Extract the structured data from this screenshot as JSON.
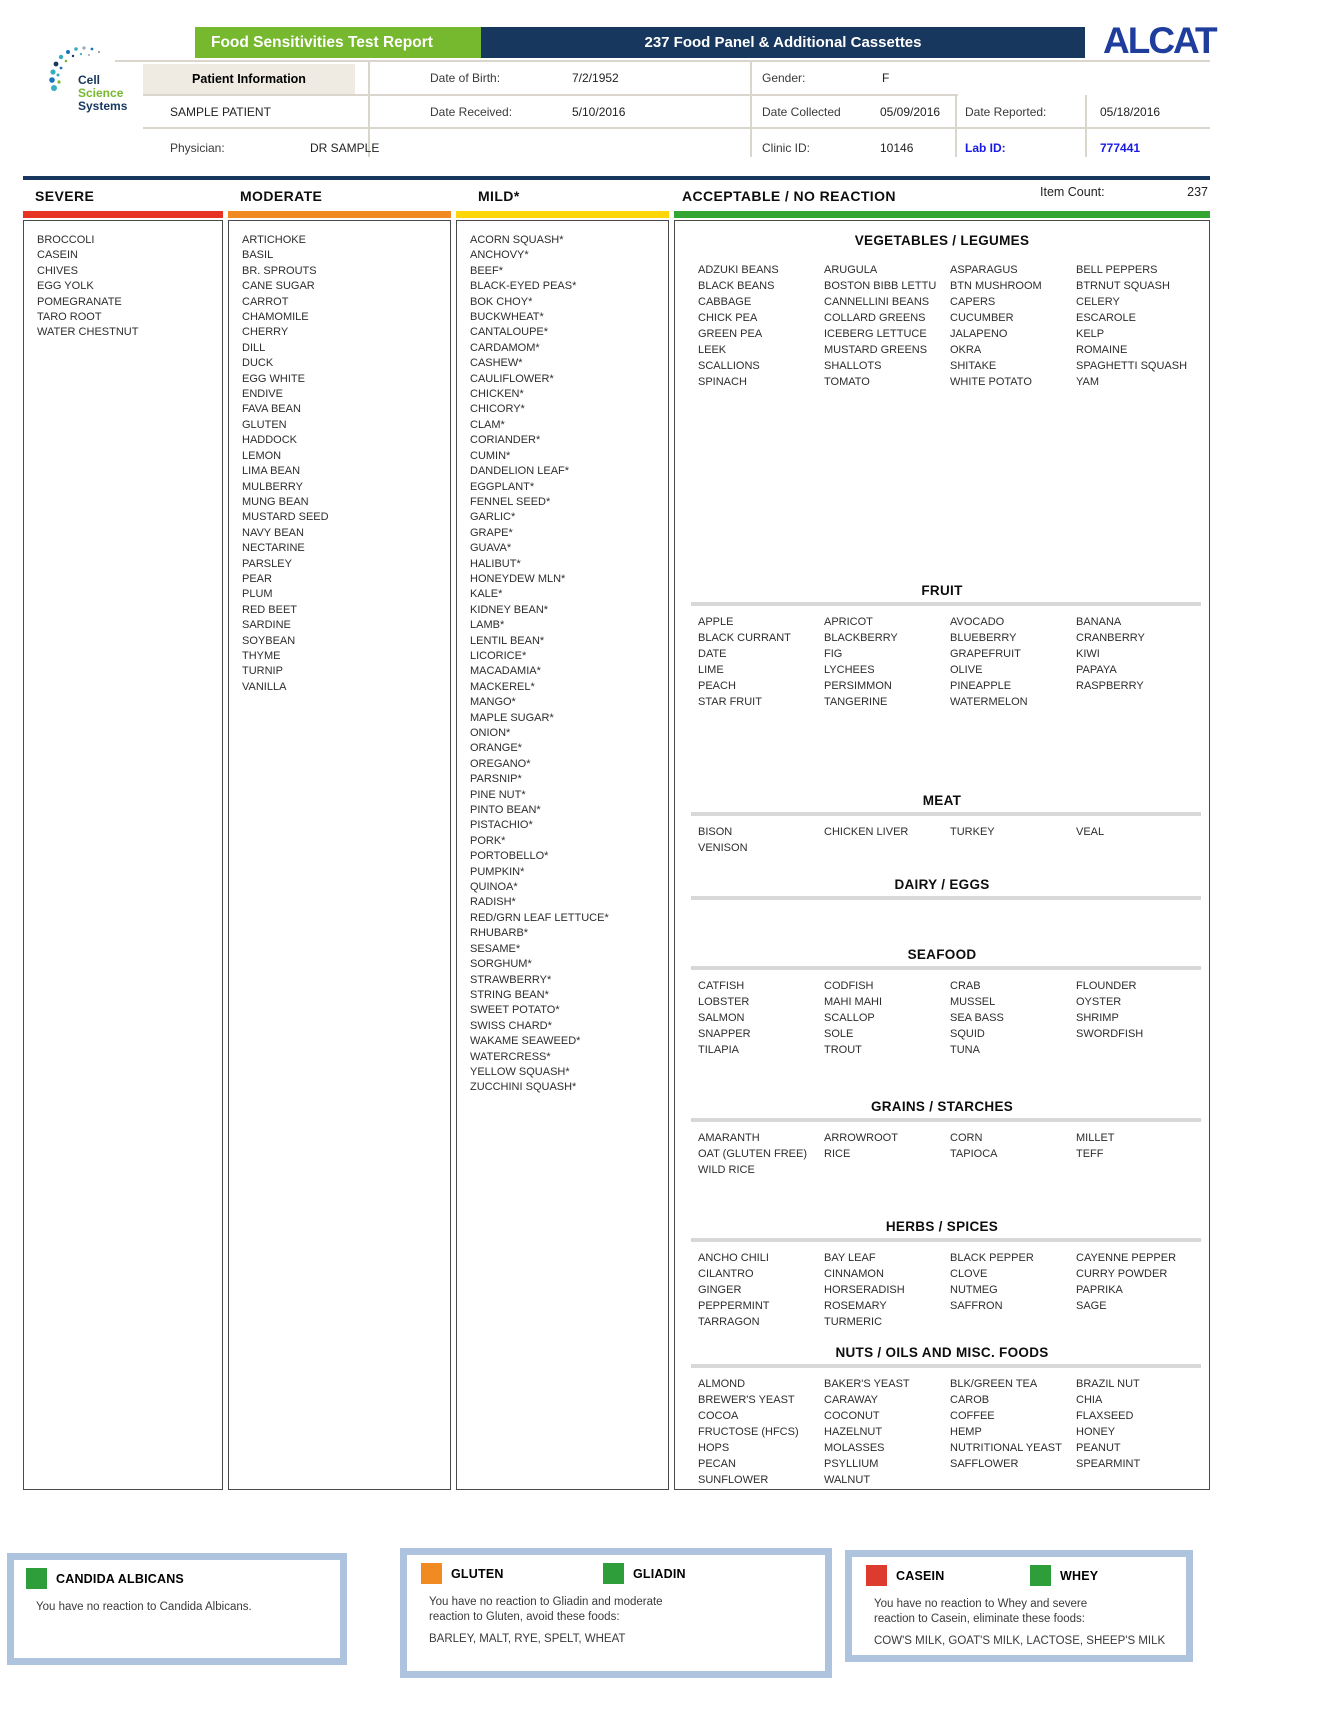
{
  "header": {
    "report_title": "Food Sensitivities Test Report",
    "panel_title": "237 Food Panel & Additional Cassettes",
    "brand": "ALCAT",
    "logo": {
      "line1": "Cell",
      "line2": "Science",
      "line3": "Systems"
    }
  },
  "patient": {
    "section_label": "Patient Information",
    "name": "SAMPLE PATIENT",
    "physician_label": "Physician:",
    "physician": "DR SAMPLE",
    "dob_label": "Date of Birth:",
    "dob": "7/2/1952",
    "gender_label": "Gender:",
    "gender": "F",
    "date_received_label": "Date Received:",
    "date_received": "5/10/2016",
    "date_collected_label": "Date Collected",
    "date_collected": "05/09/2016",
    "date_reported_label": "Date Reported:",
    "date_reported": "05/18/2016",
    "clinic_id_label": "Clinic ID:",
    "clinic_id": "10146",
    "lab_id_label": "Lab ID:",
    "lab_id": "777441"
  },
  "item_count_label": "Item Count:",
  "item_count": "237",
  "colors": {
    "severe": "#E63323",
    "moderate": "#F18A21",
    "mild": "#FFD60A",
    "acceptable": "#33A532",
    "banner_green": "#76B82E",
    "banner_navy": "#17375E",
    "alcat_blue": "#1F3D9C",
    "lab_id_blue": "#1A1AE6",
    "cassette_border": "#AEC3DE"
  },
  "columns": {
    "severe": {
      "label": "SEVERE",
      "items": [
        "BROCCOLI",
        "CASEIN",
        "CHIVES",
        "EGG YOLK",
        "POMEGRANATE",
        "TARO ROOT",
        "WATER CHESTNUT"
      ]
    },
    "moderate": {
      "label": "MODERATE",
      "items": [
        "ARTICHOKE",
        "BASIL",
        "BR. SPROUTS",
        "CANE SUGAR",
        "CARROT",
        "CHAMOMILE",
        "CHERRY",
        "DILL",
        "DUCK",
        "EGG WHITE",
        "ENDIVE",
        "FAVA BEAN",
        "GLUTEN",
        "HADDOCK",
        "LEMON",
        "LIMA BEAN",
        "MULBERRY",
        "MUNG BEAN",
        "MUSTARD SEED",
        "NAVY BEAN",
        "NECTARINE",
        "PARSLEY",
        "PEAR",
        "PLUM",
        "RED BEET",
        "SARDINE",
        "SOYBEAN",
        "THYME",
        "TURNIP",
        "VANILLA"
      ]
    },
    "mild": {
      "label": "MILD*",
      "items": [
        "ACORN SQUASH*",
        "ANCHOVY*",
        "BEEF*",
        "BLACK-EYED PEAS*",
        "BOK CHOY*",
        "BUCKWHEAT*",
        "CANTALOUPE*",
        "CARDAMOM*",
        "CASHEW*",
        "CAULIFLOWER*",
        "CHICKEN*",
        "CHICORY*",
        "CLAM*",
        "CORIANDER*",
        "CUMIN*",
        "DANDELION LEAF*",
        "EGGPLANT*",
        "FENNEL SEED*",
        "GARLIC*",
        "GRAPE*",
        "GUAVA*",
        "HALIBUT*",
        "HONEYDEW MLN*",
        "KALE*",
        "KIDNEY BEAN*",
        "LAMB*",
        "LENTIL BEAN*",
        "LICORICE*",
        "MACADAMIA*",
        "MACKEREL*",
        "MANGO*",
        "MAPLE SUGAR*",
        "ONION*",
        "ORANGE*",
        "OREGANO*",
        "PARSNIP*",
        "PINE NUT*",
        "PINTO BEAN*",
        "PISTACHIO*",
        "PORK*",
        "PORTOBELLO*",
        "PUMPKIN*",
        "QUINOA*",
        "RADISH*",
        "RED/GRN LEAF LETTUCE*",
        "RHUBARB*",
        "SESAME*",
        "SORGHUM*",
        "STRAWBERRY*",
        "STRING BEAN*",
        "SWEET POTATO*",
        "SWISS CHARD*",
        "WAKAME SEAWEED*",
        "WATERCRESS*",
        "YELLOW SQUASH*",
        "ZUCCHINI SQUASH*"
      ]
    },
    "acceptable": {
      "label": "ACCEPTABLE / NO REACTION",
      "categories": [
        {
          "name": "VEGETABLES / LEGUMES",
          "columns": [
            [
              "ADZUKI BEANS",
              "BLACK BEANS",
              "CABBAGE",
              "CHICK PEA",
              "GREEN PEA",
              "LEEK",
              "SCALLIONS",
              "SPINACH"
            ],
            [
              "ARUGULA",
              "BOSTON BIBB LETTU",
              "CANNELLINI BEANS",
              "COLLARD GREENS",
              "ICEBERG LETTUCE",
              "MUSTARD GREENS",
              "SHALLOTS",
              "TOMATO"
            ],
            [
              "ASPARAGUS",
              "BTN MUSHROOM",
              "CAPERS",
              "CUCUMBER",
              "JALAPENO",
              "OKRA",
              "SHITAKE",
              "WHITE POTATO"
            ],
            [
              "BELL PEPPERS",
              "BTRNUT SQUASH",
              "CELERY",
              "ESCAROLE",
              "KELP",
              "ROMAINE",
              "SPAGHETTI SQUASH",
              "YAM"
            ]
          ]
        },
        {
          "name": "FRUIT",
          "columns": [
            [
              "APPLE",
              "BLACK CURRANT",
              "DATE",
              "LIME",
              "PEACH",
              "STAR FRUIT"
            ],
            [
              "APRICOT",
              "BLACKBERRY",
              "FIG",
              "LYCHEES",
              "PERSIMMON",
              "TANGERINE"
            ],
            [
              "AVOCADO",
              "BLUEBERRY",
              "GRAPEFRUIT",
              "OLIVE",
              "PINEAPPLE",
              "WATERMELON"
            ],
            [
              "BANANA",
              "CRANBERRY",
              "KIWI",
              "PAPAYA",
              "RASPBERRY"
            ]
          ]
        },
        {
          "name": "MEAT",
          "columns": [
            [
              "BISON",
              "VENISON"
            ],
            [
              "CHICKEN LIVER"
            ],
            [
              "TURKEY"
            ],
            [
              "VEAL"
            ]
          ]
        },
        {
          "name": "DAIRY / EGGS",
          "columns": [
            [],
            [],
            [],
            []
          ]
        },
        {
          "name": "SEAFOOD",
          "columns": [
            [
              "CATFISH",
              "LOBSTER",
              "SALMON",
              "SNAPPER",
              "TILAPIA"
            ],
            [
              "CODFISH",
              "MAHI MAHI",
              "SCALLOP",
              "SOLE",
              "TROUT"
            ],
            [
              "CRAB",
              "MUSSEL",
              "SEA BASS",
              "SQUID",
              "TUNA"
            ],
            [
              "FLOUNDER",
              "OYSTER",
              "SHRIMP",
              "SWORDFISH"
            ]
          ]
        },
        {
          "name": "GRAINS / STARCHES",
          "columns": [
            [
              "AMARANTH",
              "OAT (GLUTEN FREE)",
              "WILD RICE"
            ],
            [
              "ARROWROOT",
              "RICE"
            ],
            [
              "CORN",
              "TAPIOCA"
            ],
            [
              "MILLET",
              "TEFF"
            ]
          ]
        },
        {
          "name": "HERBS / SPICES",
          "columns": [
            [
              "ANCHO CHILI",
              "CILANTRO",
              "GINGER",
              "PEPPERMINT",
              "TARRAGON"
            ],
            [
              "BAY LEAF",
              "CINNAMON",
              "HORSERADISH",
              "ROSEMARY",
              "TURMERIC"
            ],
            [
              "BLACK PEPPER",
              "CLOVE",
              "NUTMEG",
              "SAFFRON"
            ],
            [
              "CAYENNE PEPPER",
              "CURRY POWDER",
              "PAPRIKA",
              "SAGE"
            ]
          ]
        },
        {
          "name": "NUTS / OILS AND MISC. FOODS",
          "columns": [
            [
              "ALMOND",
              "BREWER'S YEAST",
              "COCOA",
              "FRUCTOSE (HFCS)",
              "HOPS",
              "PECAN",
              "SUNFLOWER"
            ],
            [
              "BAKER'S YEAST",
              "CARAWAY",
              "COCONUT",
              "HAZELNUT",
              "MOLASSES",
              "PSYLLIUM",
              "WALNUT"
            ],
            [
              "BLK/GREEN TEA",
              "CAROB",
              "COFFEE",
              "HEMP",
              "NUTRITIONAL YEAST",
              "SAFFLOWER"
            ],
            [
              "BRAZIL NUT",
              "CHIA",
              "FLAXSEED",
              "HONEY",
              "PEANUT",
              "SPEARMINT"
            ]
          ]
        }
      ]
    }
  },
  "cassettes": [
    {
      "title": "CANDIDA ALBICANS",
      "swatch": "#2E9E3A",
      "text": "You have no reaction to Candida Albicans."
    },
    {
      "title": "GLUTEN",
      "swatch": "#F18A21",
      "title2": "GLIADIN",
      "swatch2": "#2E9E3A",
      "text": "You have no reaction to Gliadin and moderate reaction to Gluten, avoid these foods:",
      "foods": "BARLEY, MALT, RYE, SPELT, WHEAT"
    },
    {
      "title": "CASEIN",
      "swatch": "#DD3B2E",
      "title2": "WHEY",
      "swatch2": "#2E9E3A",
      "text": "You have no reaction to Whey and severe reaction to Casein, eliminate these foods:",
      "foods": "COW'S MILK, GOAT'S MILK, LACTOSE, SHEEP'S MILK"
    }
  ]
}
